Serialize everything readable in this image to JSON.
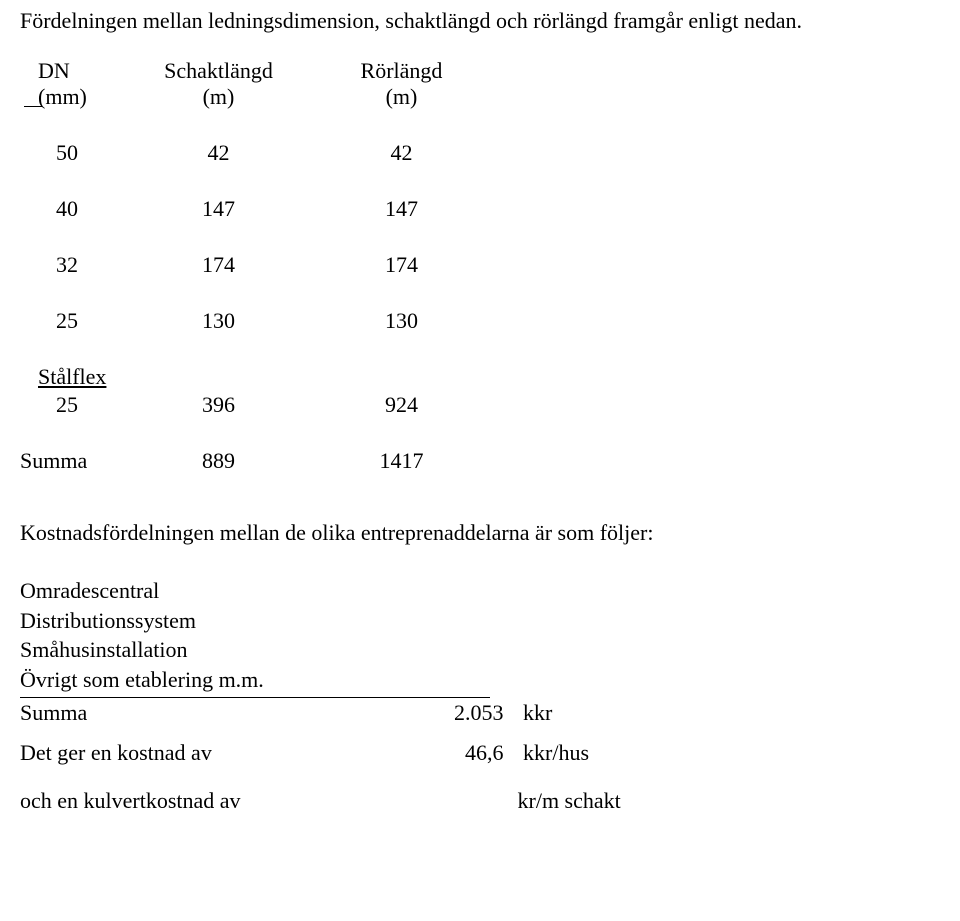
{
  "intro": "Fördelningen mellan ledningsdimension, schaktlängd och rörlängd framgår enligt nedan.",
  "table": {
    "headers": {
      "col1_label": "DN",
      "col1_unit": "(mm)",
      "col2_label": "Schaktlängd",
      "col2_unit": "(m)",
      "col3_label": "Rörlängd",
      "col3_unit": "(m)"
    },
    "rows": [
      {
        "dn": "50",
        "schakt": "42",
        "ror": "42"
      },
      {
        "dn": "40",
        "schakt": "147",
        "ror": "147"
      },
      {
        "dn": "32",
        "schakt": "174",
        "ror": "174"
      },
      {
        "dn": "25",
        "schakt": "130",
        "ror": "130"
      }
    ],
    "stalflex_label": "Stålflex",
    "stalflex_row": {
      "dn": "25",
      "schakt": "396",
      "ror": "924"
    },
    "summa_label": "Summa",
    "summa_row": {
      "schakt": "889",
      "ror": "1417"
    }
  },
  "cost_intro": "Kostnadsfördelningen mellan de olika entreprenaddelarna är som följer:",
  "cost": {
    "lines": [
      "Omradescentral",
      "Distributionssystem",
      "Småhusinstallation",
      "Övrigt som etablering m.m."
    ],
    "summa_label": "Summa",
    "summa_value": "2.053",
    "summa_unit": "kkr",
    "per_house_label": "Det ger en kostnad av",
    "per_house_value": "46,6",
    "per_house_unit": "kkr/hus",
    "kulvert_label": "och en kulvertkostnad av",
    "kulvert_unit": "kr/m schakt"
  },
  "colors": {
    "text": "#000000",
    "background": "#ffffff"
  },
  "typography": {
    "font_family": "Times New Roman",
    "body_fontsize_pt": 16
  }
}
